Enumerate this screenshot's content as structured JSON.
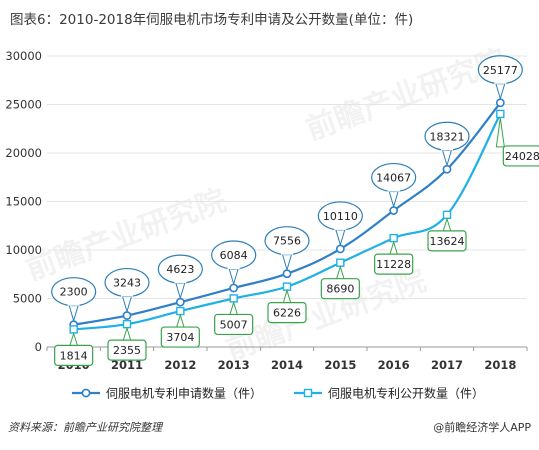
{
  "chart_data": {
    "type": "line",
    "title": "图表6：2010-2018年伺服电机市场专利申请及公开数量(单位：件)",
    "categories": [
      "2010",
      "2011",
      "2012",
      "2013",
      "2014",
      "2015",
      "2016",
      "2017",
      "2018"
    ],
    "ylim": [
      0,
      30000
    ],
    "yticks": [
      "0",
      "5000",
      "10000",
      "15000",
      "20000",
      "25000",
      "30000"
    ],
    "legend_position": "bottom",
    "series": [
      {
        "name": "伺服电机专利申请数量（件）",
        "color": "#2f80c9",
        "values": [
          2300,
          3243,
          4623,
          6084,
          7556,
          10110,
          14067,
          18321,
          25177
        ]
      },
      {
        "name": "伺服电机专利公开数量（件）",
        "color": "#1fb0e6",
        "values": [
          1814,
          2355,
          3704,
          5007,
          6226,
          8690,
          11228,
          13624,
          24028
        ]
      }
    ]
  },
  "footer": {
    "source": "资料来源：前瞻产业研究院整理",
    "brand": "@前瞻经济学人APP"
  },
  "watermark": {
    "text": "前瞻产业研究院"
  }
}
